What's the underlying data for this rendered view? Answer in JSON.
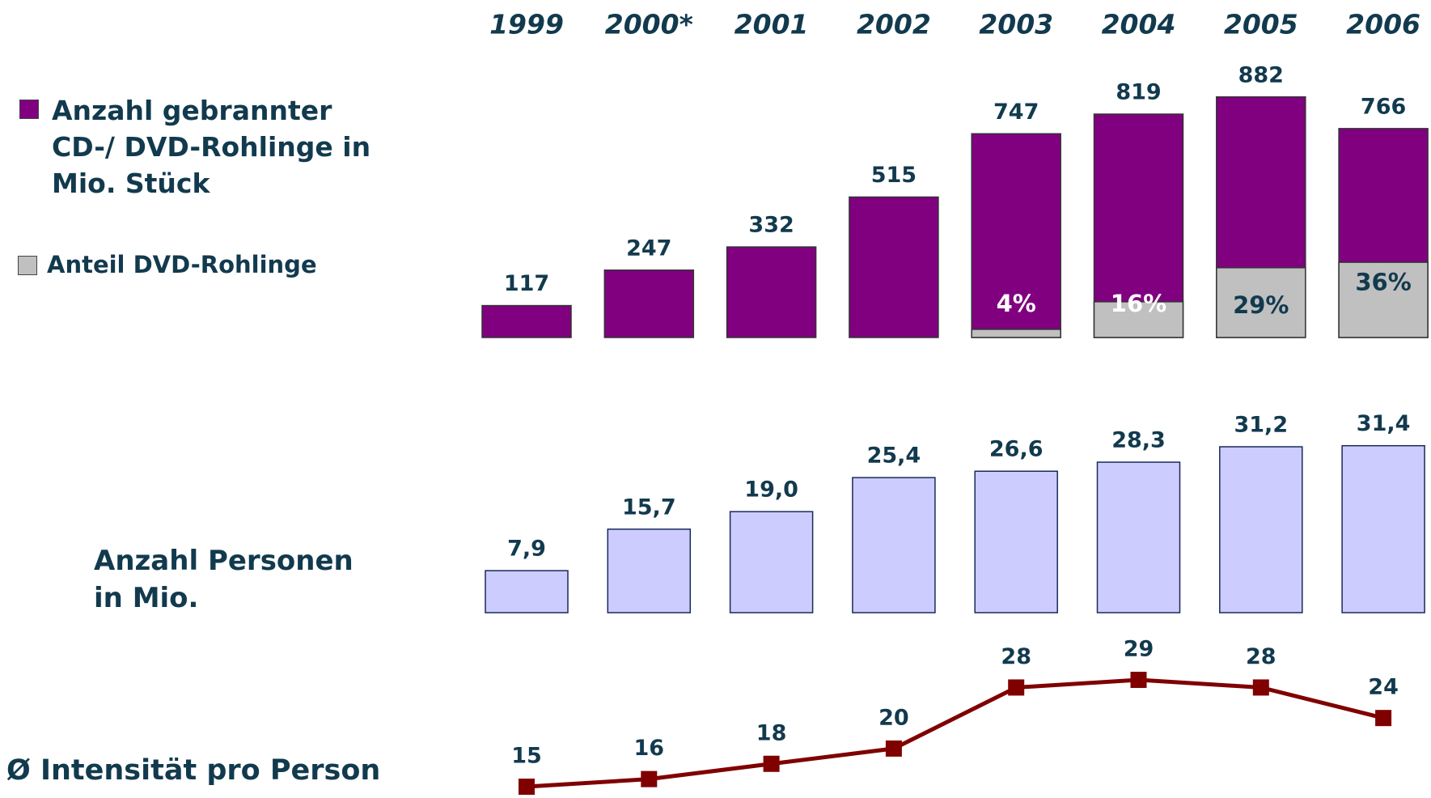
{
  "chart_data": [
    {
      "type": "bar",
      "categories": [
        "1999",
        "2000*",
        "2001",
        "2002",
        "2003",
        "2004",
        "2005",
        "2006"
      ],
      "series": [
        {
          "name": "Anzahl gebrannter CD-/ DVD-Rohlinge in Mio. Stück",
          "color": "#800080",
          "values": [
            117,
            247,
            332,
            515,
            747,
            819,
            882,
            766
          ]
        },
        {
          "name": "Anteil DVD-Rohlinge",
          "color": "#c0c0c0",
          "values": [
            null,
            null,
            null,
            null,
            4,
            16,
            29,
            36
          ],
          "value_labels": [
            null,
            null,
            null,
            null,
            "4%",
            "16%",
            "29%",
            "36%"
          ]
        }
      ]
    },
    {
      "type": "bar",
      "label": "Anzahl Personen in Mio.",
      "color": "#ccccff",
      "values": [
        7.9,
        15.7,
        19.0,
        25.4,
        26.6,
        28.3,
        31.2,
        31.4
      ],
      "value_labels": [
        "7,9",
        "15,7",
        "19,0",
        "25,4",
        "26,6",
        "28,3",
        "31,2",
        "31,4"
      ]
    },
    {
      "type": "line",
      "label": "Ø Intensität pro Person",
      "color": "#800000",
      "values": [
        15,
        16,
        18,
        20,
        28,
        29,
        28,
        24
      ]
    }
  ]
}
